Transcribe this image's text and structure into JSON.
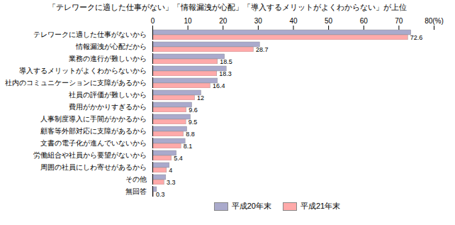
{
  "chart_data": {
    "type": "bar",
    "orientation": "horizontal",
    "title": "「テレワークに適した仕事がない」「情報漏洩が心配」「導入するメリットがよくわからない」が上位",
    "categories": [
      "テレワークに適した仕事がないから",
      "情報漏洩が心配だから",
      "業務の進行が難しいから",
      "導入するメリットがよくわからないから",
      "社内のコミュニケーションに支障があるから",
      "社員の評価が難しいから",
      "費用がかかりすぎるから",
      "人事制度導入に手間がかかるから",
      "顧客等外部対応に支障があるから",
      "文書の電子化が進んでいないから",
      "労働組合や社員から要望がないから",
      "周囲の社員にしわ寄せがあるから",
      "その他",
      "無回答"
    ],
    "series": [
      {
        "name": "平成20年末",
        "color": "#aaaacc",
        "values": [
          73.5,
          30.5,
          20.5,
          21.0,
          18.5,
          13.8,
          11.2,
          10.8,
          9.8,
          9.3,
          6.8,
          4.8,
          3.8,
          1.2
        ]
      },
      {
        "name": "平成21年末",
        "color": "#ffaaaa",
        "data_labels": true,
        "values": [
          72.6,
          28.7,
          18.5,
          18.3,
          16.4,
          12.0,
          9.6,
          9.5,
          8.8,
          8.1,
          5.4,
          4.0,
          3.3,
          0.3
        ]
      }
    ],
    "xlim": [
      0,
      80
    ],
    "xticks": [
      0,
      10,
      20,
      30,
      40,
      50,
      60,
      70,
      {
        "value": 80,
        "label": "80(%)"
      }
    ],
    "grid": false,
    "legend": "bottom"
  }
}
